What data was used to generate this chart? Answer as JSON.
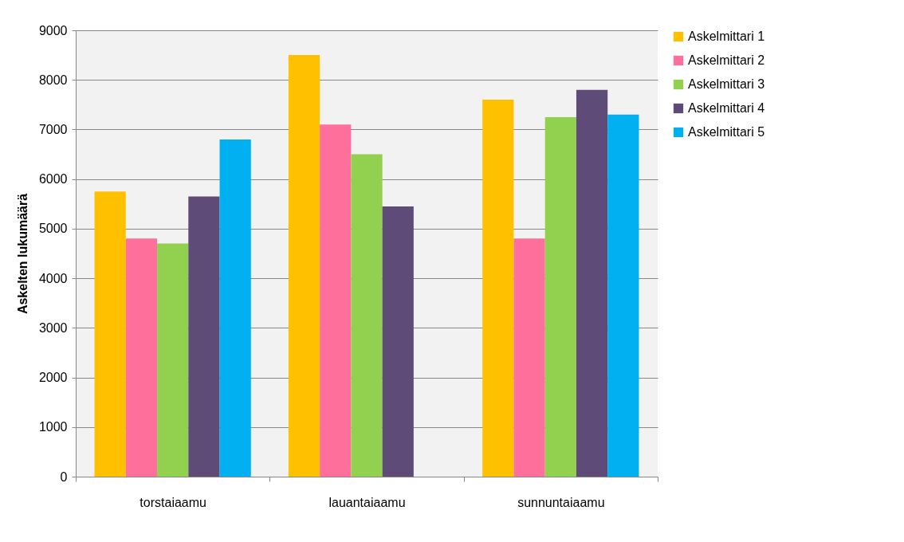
{
  "chart_data": {
    "type": "bar",
    "ylabel": "Askelten lukumäärä",
    "categories": [
      "torstaiaamu",
      "lauantaiaamu",
      "sunnuntaiaamu"
    ],
    "series": [
      {
        "name": "Askelmittari 1",
        "color": "#ffc000",
        "values": [
          5750,
          8500,
          7600
        ]
      },
      {
        "name": "Askelmittari 2",
        "color": "#ff6f9b",
        "values": [
          4800,
          7100,
          4800
        ]
      },
      {
        "name": "Askelmittari 3",
        "color": "#92d050",
        "values": [
          4700,
          6500,
          7250
        ]
      },
      {
        "name": "Askelmittari 4",
        "color": "#5f4b78",
        "values": [
          5650,
          5450,
          7800
        ]
      },
      {
        "name": "Askelmittari 5",
        "color": "#00b0f0",
        "values": [
          6800,
          null,
          7300
        ]
      }
    ],
    "ylim": [
      0,
      9000
    ],
    "yticks": [
      0,
      1000,
      2000,
      3000,
      4000,
      5000,
      6000,
      7000,
      8000,
      9000
    ],
    "grid": "y",
    "legend": "right"
  }
}
